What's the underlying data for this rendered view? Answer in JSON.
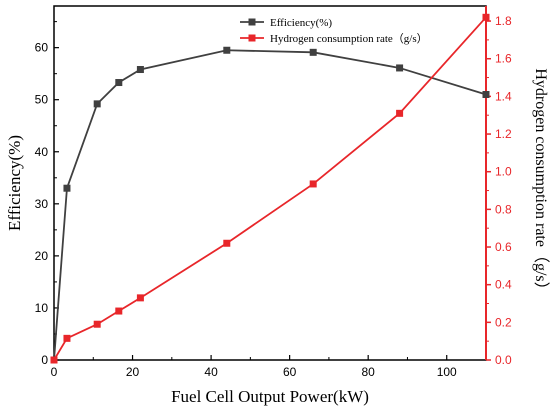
{
  "chart_data": {
    "type": "line",
    "xlabel": "Fuel Cell Output Power(kW)",
    "xlim": [
      0,
      110
    ],
    "xticks": [
      0,
      20,
      40,
      60,
      80,
      100
    ],
    "y_left": {
      "label": "Efficiency(%)",
      "lim": [
        0,
        68
      ],
      "ticks": [
        0,
        10,
        20,
        30,
        40,
        50,
        60
      ],
      "color": "#000000"
    },
    "y_right": {
      "label": "Hydrogen consumption rate（g/s）",
      "lim": [
        0,
        1.88
      ],
      "ticks": [
        "0.0",
        "0.2",
        "0.4",
        "0.6",
        "0.8",
        "1.0",
        "1.2",
        "1.4",
        "1.6",
        "1.8"
      ],
      "color": "#e8262a"
    },
    "series": [
      {
        "name": "Efficiency(%)",
        "axis": "left",
        "color": "#404040",
        "marker": "square",
        "x": [
          0,
          3.3,
          11,
          16.5,
          22,
          44,
          66,
          88,
          110
        ],
        "y": [
          0,
          33,
          49.2,
          53.3,
          55.8,
          59.5,
          59.1,
          56.1,
          51
        ]
      },
      {
        "name": "Hydrogen consumption rate（g/s）",
        "axis": "right",
        "color": "#e8262a",
        "marker": "square",
        "x": [
          0,
          3.3,
          11,
          16.5,
          22,
          44,
          66,
          88,
          110
        ],
        "y": [
          0,
          0.115,
          0.19,
          0.26,
          0.33,
          0.62,
          0.935,
          1.31,
          1.82
        ]
      }
    ],
    "legend": "top-center"
  }
}
